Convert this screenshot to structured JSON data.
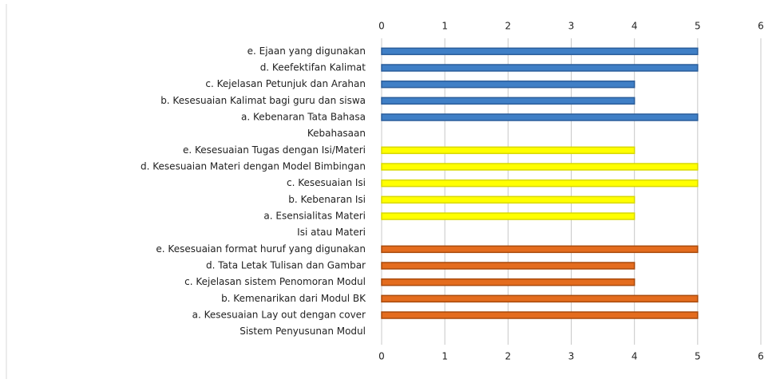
{
  "chart_data": {
    "type": "bar",
    "orientation": "horizontal",
    "categories": [
      "e.  Ejaan yang digunakan",
      "d.  Keefektifan Kalimat",
      "c.  Kejelasan Petunjuk dan Arahan",
      "b.  Kesesuaian Kalimat bagi guru dan siswa",
      "a.  Kebenaran Tata Bahasa",
      "Kebahasaan",
      "e.  Kesesuaian Tugas dengan Isi/Materi",
      "d.  Kesesuaian Materi dengan Model Bimbingan",
      "c.  Kesesuaian Isi",
      "b.  Kebenaran Isi",
      "a.  Esensialitas Materi",
      "Isi atau Materi",
      "e.  Kesesuaian format huruf yang digunakan",
      "d.  Tata Letak Tulisan dan Gambar",
      "c.  Kejelasan sistem Penomoran Modul",
      "b.  Kemenarikan dari Modul BK",
      "a.  Kesesuaian Lay out dengan cover",
      "Sistem Penyusunan Modul"
    ],
    "values": [
      5,
      5,
      4,
      4,
      5,
      null,
      4,
      5,
      5,
      4,
      4,
      null,
      5,
      4,
      4,
      5,
      5,
      null
    ],
    "colors": [
      "#3f7fc6",
      "#3f7fc6",
      "#3f7fc6",
      "#3f7fc6",
      "#3f7fc6",
      null,
      "#ffff00",
      "#ffff00",
      "#ffff00",
      "#ffff00",
      "#ffff00",
      null,
      "#e46c1e",
      "#e46c1e",
      "#e46c1e",
      "#e46c1e",
      "#e46c1e",
      null
    ],
    "xlim": [
      0,
      6
    ],
    "xticks": [
      0,
      1,
      2,
      3,
      4,
      5,
      6
    ],
    "grid": true
  }
}
